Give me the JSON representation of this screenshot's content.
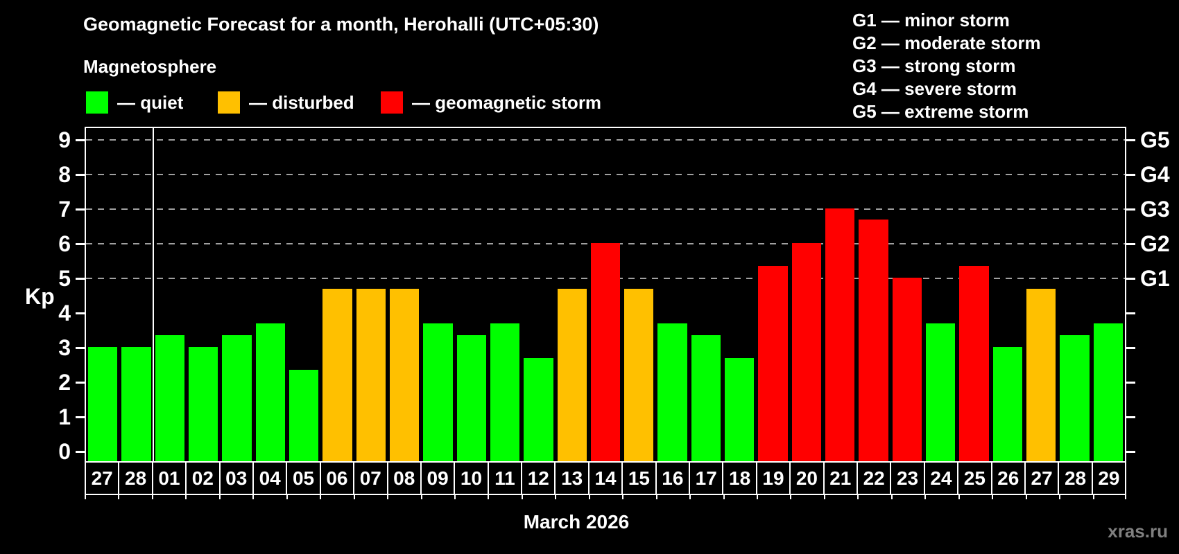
{
  "title": "Geomagnetic Forecast for a month, Herohalli (UTC+05:30)",
  "subtitle": "Magnetosphere",
  "legend": {
    "items": [
      {
        "name": "quiet",
        "label": "— quiet",
        "color": "#00ff00"
      },
      {
        "name": "disturbed",
        "label": "— disturbed",
        "color": "#ffc000"
      },
      {
        "name": "storm",
        "label": "— geomagnetic storm",
        "color": "#ff0000"
      }
    ]
  },
  "g_legend": {
    "items": [
      "G1 — minor storm",
      "G2 — moderate storm",
      "G3 — strong storm",
      "G4 — severe storm",
      "G5 — extreme storm"
    ]
  },
  "axis": {
    "y_label": "Kp",
    "y_ticks": [
      0,
      1,
      2,
      3,
      4,
      5,
      6,
      7,
      8,
      9
    ],
    "grid_levels": [
      5,
      6,
      7,
      8,
      9
    ],
    "right_labels": [
      {
        "kp": 5,
        "label": "G1"
      },
      {
        "kp": 6,
        "label": "G2"
      },
      {
        "kp": 7,
        "label": "G3"
      },
      {
        "kp": 8,
        "label": "G4"
      },
      {
        "kp": 9,
        "label": "G5"
      }
    ]
  },
  "xlabel": "March 2026",
  "watermark": "xras.ru",
  "colors": {
    "quiet": "#00ff00",
    "disturbed": "#ffc000",
    "storm": "#ff0000",
    "grid": "#a0a0a0",
    "axis": "#ffffff",
    "text": "#ffffff",
    "watermark": "#808080",
    "background": "#000000"
  },
  "chart_data": {
    "type": "bar",
    "title": "Geomagnetic Forecast for a month, Herohalli (UTC+05:30)",
    "xlabel": "March 2026",
    "ylabel": "Kp",
    "ylim": [
      0,
      9
    ],
    "grid": "dashed horizontal at Kp 5-9",
    "legend_position": "top-left and top-right",
    "categories": [
      "27",
      "28",
      "01",
      "02",
      "03",
      "04",
      "05",
      "06",
      "07",
      "08",
      "09",
      "10",
      "11",
      "12",
      "13",
      "14",
      "15",
      "16",
      "17",
      "18",
      "19",
      "20",
      "21",
      "22",
      "23",
      "24",
      "25",
      "26",
      "27",
      "28",
      "29"
    ],
    "values": [
      3.0,
      3.0,
      3.33,
      3.0,
      3.33,
      3.67,
      2.33,
      4.67,
      4.67,
      4.67,
      3.67,
      3.33,
      3.67,
      2.67,
      4.67,
      6.0,
      4.67,
      3.67,
      3.33,
      2.67,
      5.33,
      6.0,
      7.0,
      6.67,
      5.0,
      3.67,
      5.33,
      3.0,
      4.67,
      3.33,
      3.67
    ],
    "statuses": [
      "quiet",
      "quiet",
      "quiet",
      "quiet",
      "quiet",
      "quiet",
      "quiet",
      "disturbed",
      "disturbed",
      "disturbed",
      "quiet",
      "quiet",
      "quiet",
      "quiet",
      "disturbed",
      "storm",
      "disturbed",
      "quiet",
      "quiet",
      "quiet",
      "storm",
      "storm",
      "storm",
      "storm",
      "storm",
      "quiet",
      "storm",
      "quiet",
      "disturbed",
      "quiet",
      "quiet"
    ],
    "month_separator_after_index": 1
  }
}
